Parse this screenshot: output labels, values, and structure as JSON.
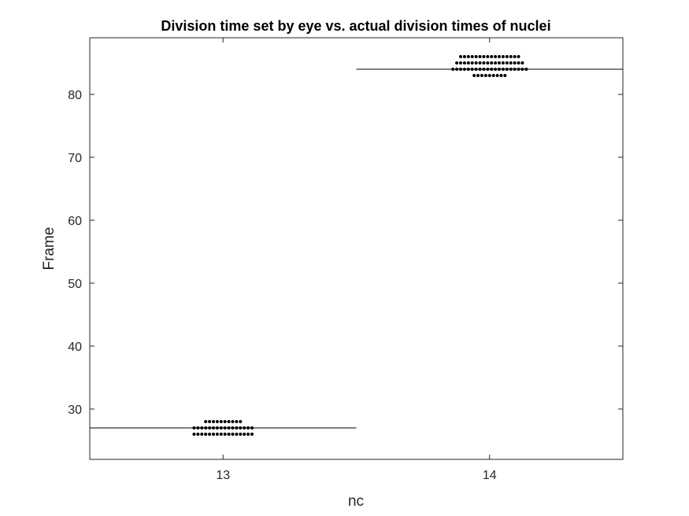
{
  "chart_data": {
    "type": "scatter",
    "title": "Division time set by eye vs. actual division times of nuclei",
    "xlabel": "nc",
    "ylabel": "Frame",
    "categories": [
      "13",
      "14"
    ],
    "xlim": [
      12.5,
      14.5
    ],
    "ylim": [
      22,
      89
    ],
    "yticks": [
      "30",
      "40",
      "50",
      "60",
      "70",
      "80"
    ],
    "grid": false,
    "colors": {
      "points": "#000000",
      "line": "#000000",
      "axes": "#262626"
    },
    "reference_lines": [
      {
        "category": "13",
        "value": 27
      },
      {
        "category": "14",
        "value": 84
      }
    ],
    "groups": [
      {
        "category": "13",
        "rows": [
          {
            "y": 28,
            "count": 10
          },
          {
            "y": 27,
            "count": 16
          },
          {
            "y": 26,
            "count": 16
          }
        ]
      },
      {
        "category": "14",
        "rows": [
          {
            "y": 86,
            "count": 16
          },
          {
            "y": 85,
            "count": 18
          },
          {
            "y": 84,
            "count": 20
          },
          {
            "y": 83,
            "count": 9
          }
        ]
      }
    ]
  }
}
